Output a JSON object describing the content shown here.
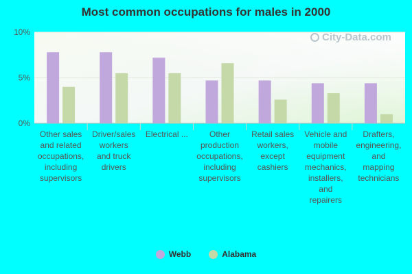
{
  "chart_data": {
    "type": "bar",
    "title": "Most common occupations for males in 2000",
    "categories": [
      [
        "Other sales",
        "and related",
        "occupations,",
        "including",
        "supervisors"
      ],
      [
        "Driver/sales",
        "workers",
        "and truck",
        "drivers"
      ],
      [
        "Electrical ..."
      ],
      [
        "Other",
        "production",
        "occupations,",
        "including",
        "supervisors"
      ],
      [
        "Retail sales",
        "workers,",
        "except",
        "cashiers"
      ],
      [
        "Vehicle and",
        "mobile",
        "equipment",
        "mechanics,",
        "installers,",
        "and",
        "repairers"
      ],
      [
        "Drafters,",
        "engineering,",
        "and",
        "mapping",
        "technicians"
      ]
    ],
    "series": [
      {
        "name": "Webb",
        "color": "#c0a8dc",
        "values": [
          7.8,
          7.8,
          7.2,
          4.7,
          4.7,
          4.4,
          4.4
        ]
      },
      {
        "name": "Alabama",
        "color": "#c4d8a8",
        "values": [
          4.0,
          5.5,
          5.5,
          6.6,
          2.6,
          3.3,
          1.0
        ]
      }
    ],
    "yticks": [
      "0%",
      "5%",
      "10%"
    ],
    "ylim": [
      0,
      10
    ],
    "legend": "bottom"
  },
  "watermark": "City-Data.com"
}
